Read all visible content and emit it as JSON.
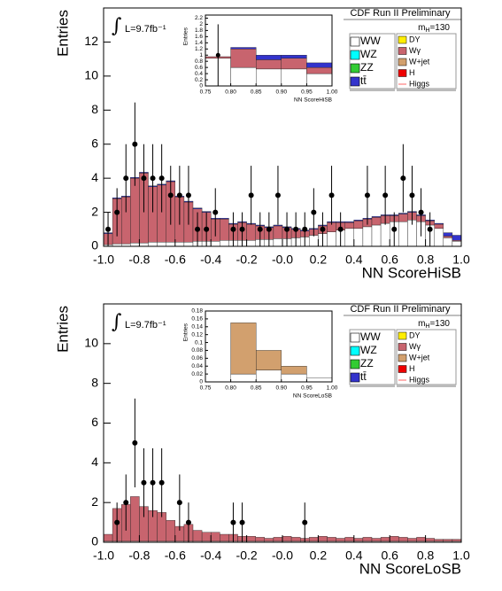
{
  "chart_data": [
    {
      "type": "histogram",
      "ylabel": "Entries",
      "xlabel": "NN ScoreHiSB",
      "experiment": "CDF Run II Preliminary",
      "lumi": "L=9.7fb⁻¹",
      "mass": {
        "symbol": "m",
        "sub": "H",
        "rest": "=130"
      },
      "xlim": [
        -1,
        1
      ],
      "ylim": [
        0,
        14
      ],
      "xticks": [
        {
          "value": -1,
          "label": "-1.0"
        },
        -0.8,
        -0.6,
        -0.4,
        -0.2,
        {
          "value": 0,
          "label": "-0.0"
        },
        0.2,
        0.4,
        0.6,
        0.8,
        {
          "value": 1,
          "label": "1.0"
        }
      ],
      "yticks": [
        0,
        2,
        4,
        6,
        8,
        10,
        12
      ],
      "bins": [
        -1,
        -0.95,
        -0.9,
        -0.85,
        -0.8,
        -0.75,
        -0.7,
        -0.65,
        -0.6,
        -0.55,
        -0.5,
        -0.45,
        -0.4,
        -0.35,
        -0.3,
        -0.25,
        -0.2,
        -0.15,
        -0.1,
        -0.05,
        0,
        0.05,
        0.1,
        0.15,
        0.2,
        0.25,
        0.3,
        0.35,
        0.4,
        0.45,
        0.5,
        0.55,
        0.6,
        0.65,
        0.7,
        0.75,
        0.8,
        0.85,
        0.9,
        0.95,
        1
      ],
      "series": [
        {
          "color": "#ffffff",
          "values": [
            0.1,
            0.15,
            0.15,
            0.2,
            0.2,
            0.25,
            0.25,
            0.25,
            0.25,
            0.25,
            0.3,
            0.3,
            0.3,
            0.35,
            0.35,
            0.35,
            0.35,
            0.4,
            0.4,
            0.45,
            0.45,
            0.5,
            0.55,
            0.65,
            0.75,
            0.85,
            0.95,
            1.05,
            1.05,
            1.15,
            1.25,
            1.35,
            1.45,
            1.45,
            1.55,
            1.45,
            1.25,
            1.05,
            0.5,
            0.3
          ]
        },
        {
          "color": "#c8646e",
          "values": [
            0.65,
            2.65,
            2.75,
            3.8,
            4.1,
            3.25,
            3.35,
            3.55,
            2.65,
            2.35,
            1.9,
            1.7,
            1.3,
            1.25,
            0.95,
            1.05,
            0.95,
            0.8,
            0.7,
            0.75,
            0.65,
            0.5,
            0.35,
            0.35,
            0.45,
            0.55,
            0.45,
            0.35,
            0.45,
            0.45,
            0.45,
            0.45,
            0.35,
            0.45,
            0.45,
            0.35,
            0.25,
            0.25,
            0.1,
            0.05
          ]
        },
        {
          "color": "#3333cc",
          "values": [
            0.05,
            0.05,
            0.05,
            0.05,
            0.05,
            0.05,
            0.05,
            0.05,
            0.05,
            0.05,
            0.05,
            0.05,
            0.05,
            0.05,
            0.05,
            0.05,
            0.05,
            0.05,
            0.05,
            0.05,
            0.05,
            0.05,
            0.05,
            0.05,
            0.05,
            0.05,
            0.05,
            0.05,
            0.05,
            0.05,
            0.05,
            0.05,
            0.05,
            0.05,
            0.05,
            0.05,
            0.05,
            0.05,
            0.2,
            0.3
          ]
        }
      ],
      "data": [
        1,
        2,
        4,
        6,
        4,
        4,
        4,
        3,
        3,
        3,
        1,
        1,
        2,
        null,
        1,
        1,
        3,
        1,
        1,
        3,
        1,
        1,
        1,
        2,
        1,
        3,
        1,
        null,
        null,
        3,
        null,
        3,
        1,
        4,
        3,
        2,
        1,
        null,
        null,
        null
      ],
      "legend": [
        {
          "name": "WW",
          "color": "#ffffff"
        },
        {
          "name": "WZ",
          "color": "#00ffff"
        },
        {
          "name": "ZZ",
          "color": "#33cc33"
        },
        {
          "name": "tt̄",
          "color": "#3333cc"
        },
        {
          "name": "DY",
          "color": "#ffee00"
        },
        {
          "name": "Wγ",
          "color": "#c8646e"
        },
        {
          "name": "W+jet",
          "color": "#d2a06e"
        },
        {
          "name": "H",
          "color": "#ee0000"
        },
        {
          "name": "Higgs",
          "color": "#ff6666",
          "line": true
        }
      ],
      "inset": {
        "ylabel": "Entries",
        "xlabel": "NN ScoreHiSB",
        "xlim": [
          0.75,
          1
        ],
        "ylim": [
          0,
          2.3
        ],
        "xticks": [
          0.75,
          {
            "value": 0.8,
            "label": "0.80"
          },
          0.85,
          {
            "value": 0.9,
            "label": "0.90"
          },
          0.95,
          {
            "value": 1,
            "label": "1.00"
          }
        ],
        "yticks": [
          0,
          0.2,
          0.4,
          0.6,
          0.8,
          1,
          1.2,
          1.4,
          1.6,
          1.8,
          2,
          2.2
        ],
        "bins": [
          0.75,
          0.8,
          0.85,
          0.9,
          0.95,
          1
        ],
        "series": [
          {
            "color": "#ffffff",
            "values": [
              0.9,
              0.6,
              0.55,
              0.55,
              0.4
            ]
          },
          {
            "color": "#c8646e",
            "values": [
              0.05,
              0.6,
              0.3,
              0.35,
              0.2
            ]
          },
          {
            "color": "#3333cc",
            "values": [
              0,
              0.05,
              0.15,
              0.1,
              0.15
            ]
          }
        ],
        "data": [
          1,
          null,
          null,
          null,
          null
        ]
      }
    },
    {
      "type": "histogram",
      "ylabel": "Entries",
      "xlabel": "NN ScoreLoSB",
      "experiment": "CDF Run II Preliminary",
      "lumi": "L=9.7fb⁻¹",
      "mass": {
        "symbol": "m",
        "sub": "H",
        "rest": "=130"
      },
      "xlim": [
        -1,
        1
      ],
      "ylim": [
        0,
        12
      ],
      "xticks": [
        {
          "value": -1,
          "label": "-1.0"
        },
        -0.8,
        -0.6,
        -0.4,
        -0.2,
        {
          "value": 0,
          "label": "-0.0"
        },
        0.2,
        0.4,
        0.6,
        0.8,
        {
          "value": 1,
          "label": "1.0"
        }
      ],
      "yticks": [
        0,
        2,
        4,
        6,
        8,
        10
      ],
      "bins": [
        -1,
        -0.95,
        -0.9,
        -0.85,
        -0.8,
        -0.75,
        -0.7,
        -0.65,
        -0.6,
        -0.55,
        -0.5,
        -0.45,
        -0.4,
        -0.35,
        -0.3,
        -0.25,
        -0.2,
        -0.15,
        -0.1,
        -0.05,
        0,
        0.05,
        0.1,
        0.15,
        0.2,
        0.25,
        0.3,
        0.35,
        0.4,
        0.45,
        0.5,
        0.55,
        0.6,
        0.65,
        0.7,
        0.75,
        0.8,
        0.85,
        0.9,
        0.95,
        1
      ],
      "series": [
        {
          "color": "#ffffff",
          "values": [
            0.05,
            0.05,
            0.05,
            0.05,
            0.05,
            0.05,
            0.05,
            0.05,
            0.05,
            0.05,
            0.05,
            0.05,
            0.05,
            0.05,
            0.05,
            0.05,
            0.05,
            0.05,
            0.05,
            0.05,
            0.05,
            0.05,
            0.05,
            0.05,
            0.05,
            0.05,
            0.05,
            0.05,
            0.05,
            0.05,
            0.05,
            0.05,
            0.05,
            0.05,
            0.05,
            0.05,
            0.05,
            0.05,
            0.05,
            0.05
          ]
        },
        {
          "color": "#c8646e",
          "values": [
            0.35,
            1.65,
            1.85,
            2.25,
            1.75,
            1.55,
            1.45,
            1.05,
            0.75,
            0.85,
            0.55,
            0.45,
            0.45,
            0.35,
            0.35,
            0.25,
            0.25,
            0.2,
            0.15,
            0.2,
            0.25,
            0.2,
            0.15,
            0.2,
            0.25,
            0.2,
            0.15,
            0.2,
            0.15,
            0.2,
            0.15,
            0.2,
            0.25,
            0.2,
            0.15,
            0.2,
            0.15,
            0.1,
            0.1,
            0.1
          ]
        }
      ],
      "data": [
        null,
        1,
        2,
        5,
        3,
        3,
        3,
        null,
        2,
        1,
        null,
        null,
        null,
        null,
        1,
        1,
        null,
        null,
        null,
        null,
        null,
        null,
        1,
        null,
        null,
        null,
        null,
        null,
        null,
        null,
        null,
        null,
        null,
        null,
        null,
        null,
        null,
        null,
        null,
        null
      ],
      "legend": [
        {
          "name": "WW",
          "color": "#ffffff"
        },
        {
          "name": "WZ",
          "color": "#00ffff"
        },
        {
          "name": "ZZ",
          "color": "#33cc33"
        },
        {
          "name": "tt̄",
          "color": "#3333cc"
        },
        {
          "name": "DY",
          "color": "#ffee00"
        },
        {
          "name": "Wγ",
          "color": "#c8646e"
        },
        {
          "name": "W+jet",
          "color": "#d2a06e"
        },
        {
          "name": "H",
          "color": "#ee0000"
        },
        {
          "name": "Higgs",
          "color": "#ff6666",
          "line": true
        }
      ],
      "inset": {
        "ylabel": "Entries",
        "xlabel": "NN ScoreLoSB",
        "xlim": [
          0.75,
          1
        ],
        "ylim": [
          0,
          0.18
        ],
        "xticks": [
          0.75,
          {
            "value": 0.8,
            "label": "0.80"
          },
          0.85,
          {
            "value": 0.9,
            "label": "0.90"
          },
          0.95,
          {
            "value": 1,
            "label": "1.00"
          }
        ],
        "yticks": [
          0,
          0.02,
          0.04,
          0.06,
          0.08,
          0.1,
          0.12,
          0.14,
          0.16,
          0.18
        ],
        "bins": [
          0.75,
          0.8,
          0.85,
          0.9,
          0.95,
          1
        ],
        "series": [
          {
            "color": "#ffffff",
            "values": [
              0,
              0.02,
              0.03,
              0.02,
              0.01
            ]
          },
          {
            "color": "#d2a06e",
            "values": [
              0,
              0.13,
              0.05,
              0.02,
              0
            ]
          }
        ],
        "data": [
          null,
          null,
          null,
          null,
          null
        ]
      }
    }
  ]
}
